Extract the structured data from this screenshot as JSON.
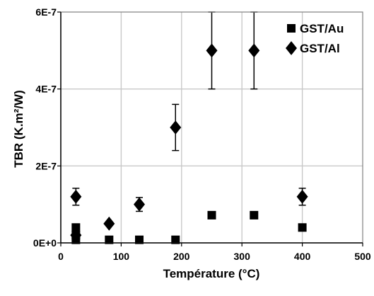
{
  "chart_data": {
    "type": "scatter",
    "title": "",
    "xlabel": "Température (°C)",
    "ylabel": "TBR (K.m²/W)",
    "xlim": [
      0,
      500
    ],
    "ylim": [
      0,
      6e-07
    ],
    "x_ticks": [
      0,
      100,
      200,
      300,
      400,
      500
    ],
    "x_tick_labels": [
      "0",
      "100",
      "200",
      "300",
      "400",
      "500"
    ],
    "y_ticks": [
      0,
      2e-07,
      4e-07,
      6e-07
    ],
    "y_tick_labels": [
      "0E+0",
      "2E-7",
      "4E-7",
      "6E-7"
    ],
    "grid": true,
    "legend_position": "top-right",
    "series": [
      {
        "name": "GST/Au",
        "marker": "square",
        "color": "#000000",
        "points": [
          {
            "x": 25,
            "y": 4e-08,
            "err": 0
          },
          {
            "x": 25,
            "y": 2e-08,
            "err": 0
          },
          {
            "x": 25,
            "y": 8e-09,
            "err": 0
          },
          {
            "x": 80,
            "y": 8e-09,
            "err": 0
          },
          {
            "x": 130,
            "y": 8e-09,
            "err": 0
          },
          {
            "x": 190,
            "y": 8e-09,
            "err": 0
          },
          {
            "x": 250,
            "y": 7.2e-08,
            "err": 8e-09
          },
          {
            "x": 320,
            "y": 7.2e-08,
            "err": 8e-09
          },
          {
            "x": 400,
            "y": 4e-08,
            "err": 0
          }
        ]
      },
      {
        "name": "GST/Al",
        "marker": "diamond",
        "color": "#000000",
        "points": [
          {
            "x": 25,
            "y": 1.2e-07,
            "err": 2.2e-08
          },
          {
            "x": 25,
            "y": 2e-08,
            "err": 0
          },
          {
            "x": 80,
            "y": 5e-08,
            "err": 0
          },
          {
            "x": 130,
            "y": 1e-07,
            "err": 1.8e-08
          },
          {
            "x": 190,
            "y": 3e-07,
            "err": 6e-08
          },
          {
            "x": 250,
            "y": 5e-07,
            "err": 1e-07
          },
          {
            "x": 320,
            "y": 5e-07,
            "err": 1e-07
          },
          {
            "x": 400,
            "y": 1.2e-07,
            "err": 2.2e-08
          }
        ]
      }
    ]
  }
}
